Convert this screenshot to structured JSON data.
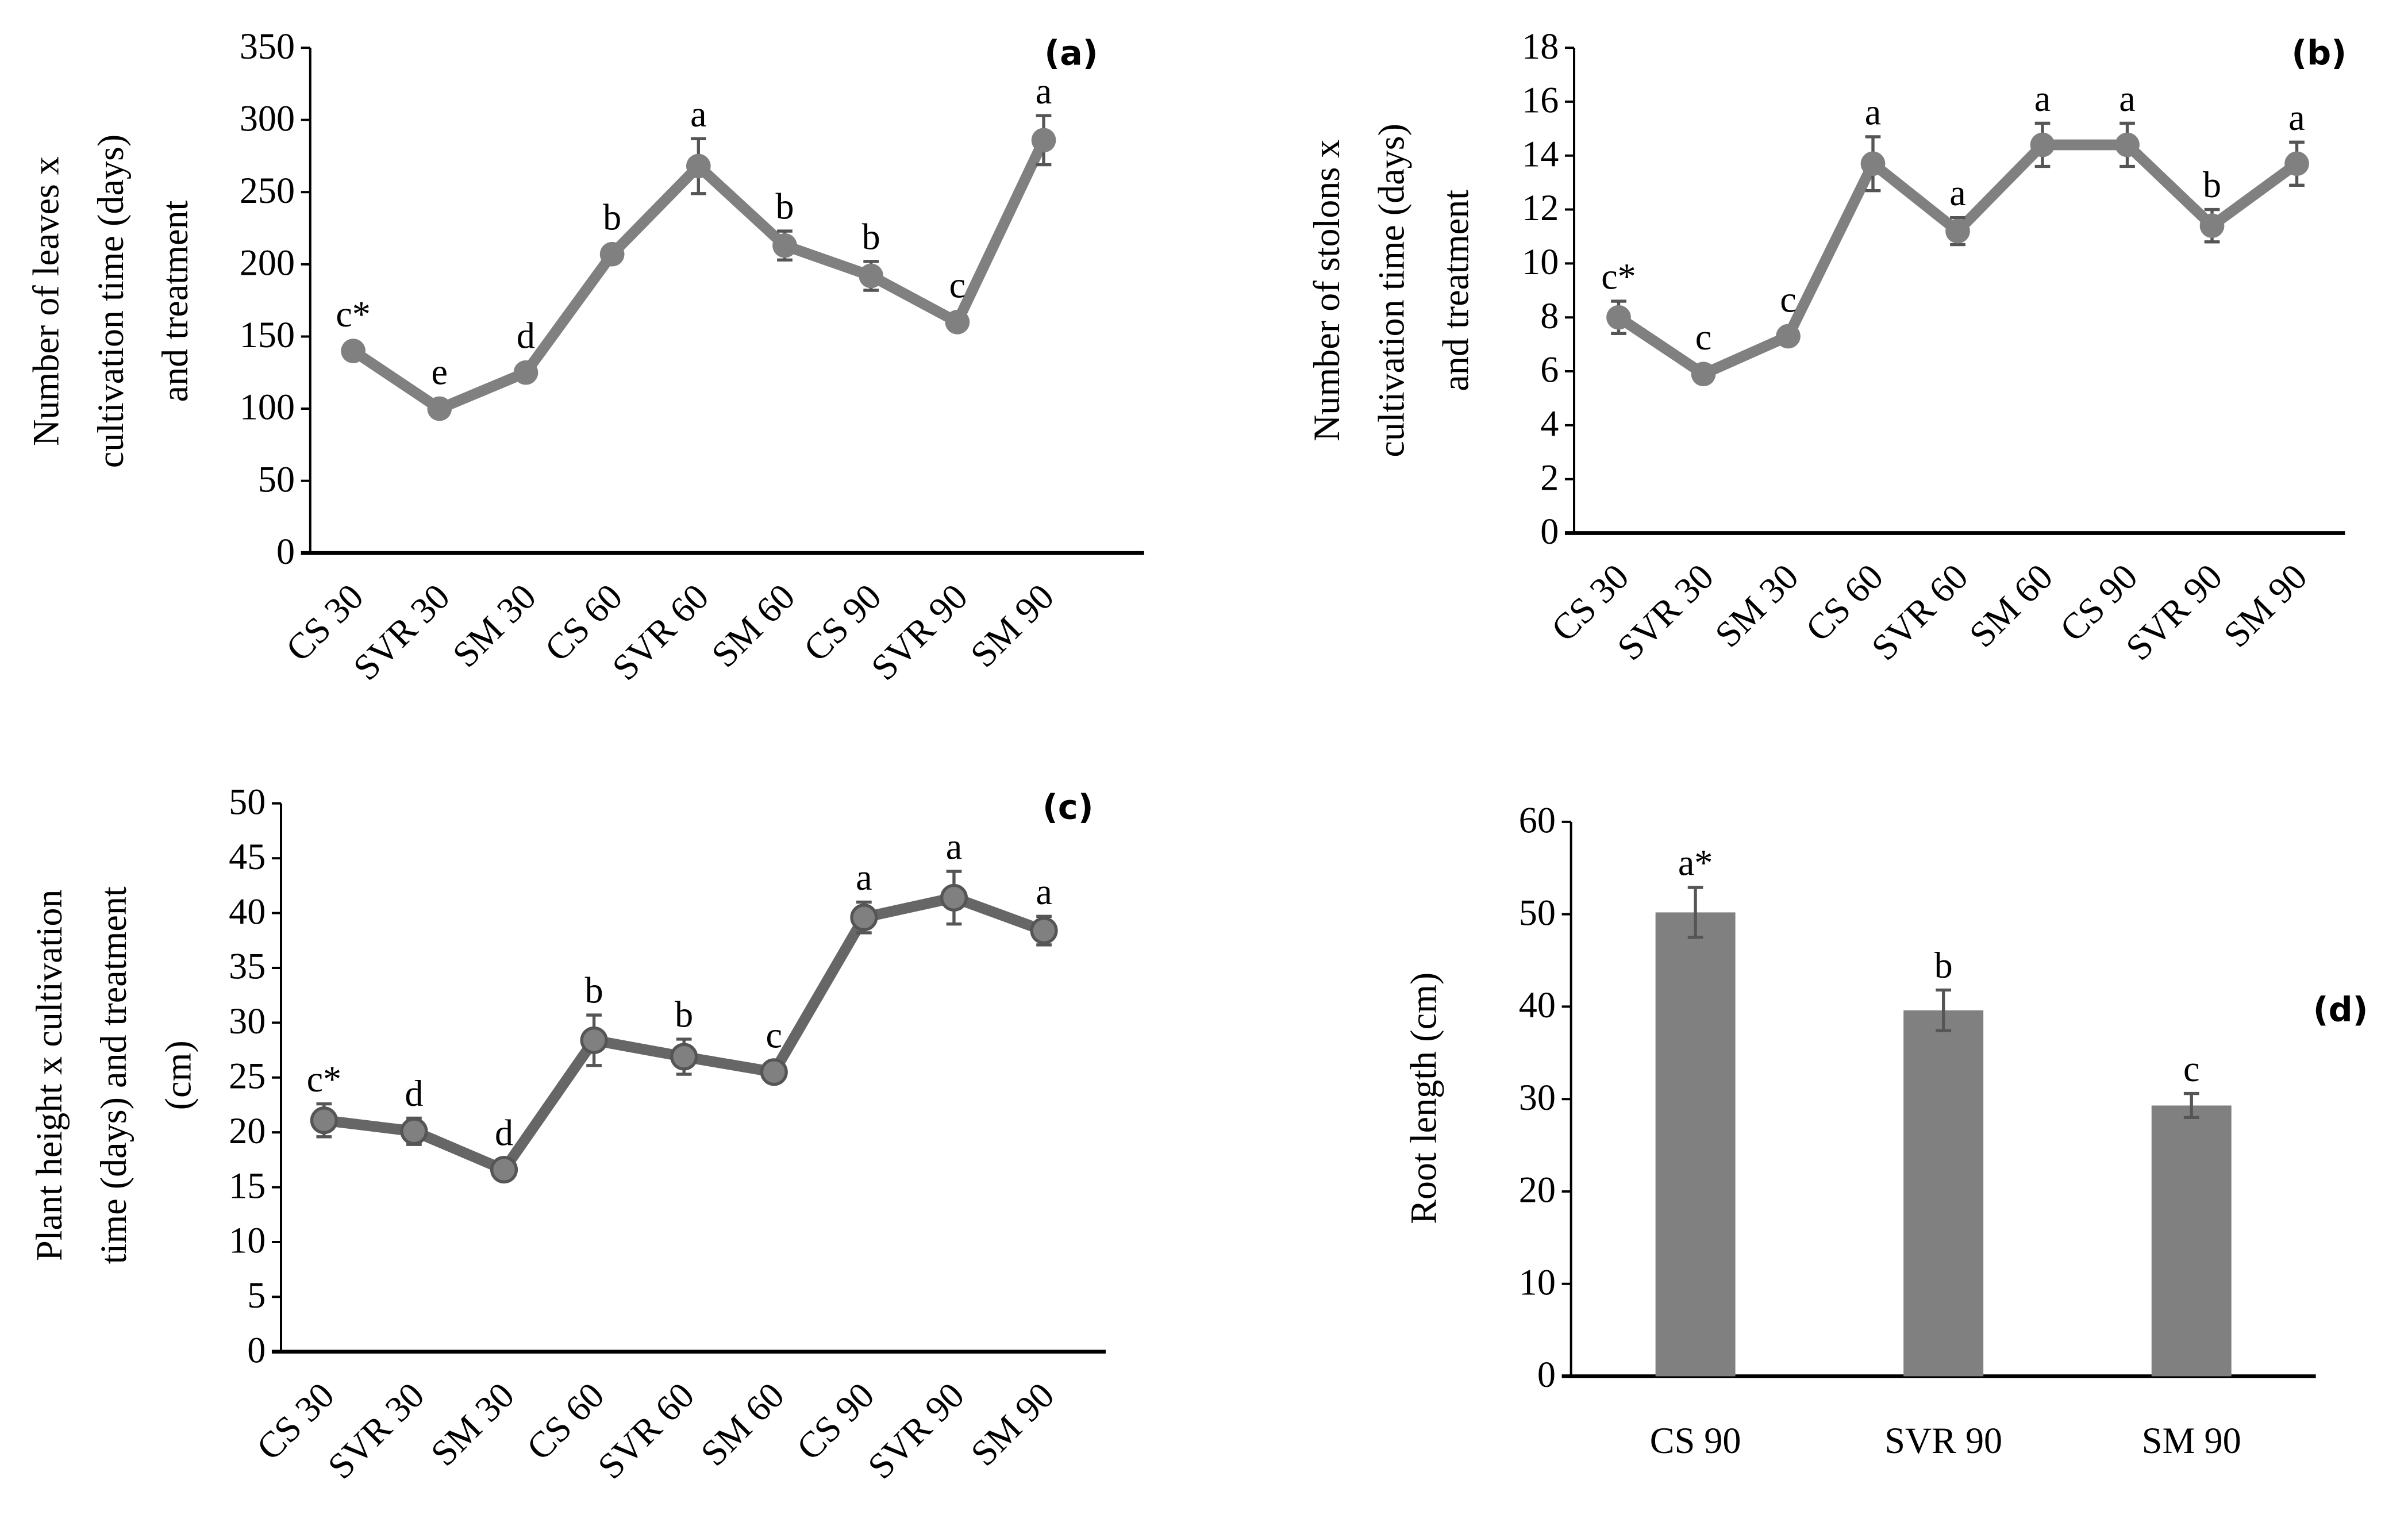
{
  "chart_data": [
    {
      "panel": "(a)",
      "type": "line",
      "ylabel": [
        "Number of leaves x",
        "cultivation time (days)",
        "and treatment"
      ],
      "categories": [
        "CS 30",
        "SVR 30",
        "SM 30",
        "CS 60",
        "SVR 60",
        "SM 60",
        "CS 90",
        "SVR 90",
        "SM 90"
      ],
      "values": [
        140,
        100,
        125,
        207,
        268,
        213,
        192,
        160,
        286
      ],
      "errors": [
        4,
        3,
        4,
        5,
        19,
        10,
        10,
        4,
        17
      ],
      "letters": [
        "c*",
        "e",
        "d",
        "b",
        "a",
        "b",
        "b",
        "c",
        "a"
      ],
      "ylim": [
        0,
        350
      ],
      "yticks": [
        0,
        50,
        100,
        150,
        200,
        250,
        300,
        350
      ],
      "color": "#808080"
    },
    {
      "panel": "(b)",
      "type": "line",
      "ylabel": [
        "Number of stolons x",
        "cultivation time (days)",
        "and treatment"
      ],
      "categories": [
        "CS 30",
        "SVR 30",
        "SM 30",
        "CS 60",
        "SVR 60",
        "SM 60",
        "CS 90",
        "SVR 90",
        "SM 90"
      ],
      "values": [
        8.0,
        5.9,
        7.3,
        13.7,
        11.2,
        14.4,
        14.4,
        11.4,
        13.7
      ],
      "errors": [
        0.6,
        0.3,
        0.2,
        1.0,
        0.5,
        0.8,
        0.8,
        0.6,
        0.8
      ],
      "letters": [
        "c*",
        "c",
        "c",
        "a",
        "a",
        "a",
        "a",
        "b",
        "a"
      ],
      "ylim": [
        0,
        18
      ],
      "yticks": [
        0,
        2,
        4,
        6,
        8,
        10,
        12,
        14,
        16,
        18
      ],
      "color": "#808080"
    },
    {
      "panel": "(c)",
      "type": "line",
      "ylabel": [
        "Plant height x cultivation",
        "time  (days) and treatment",
        "(cm)"
      ],
      "categories": [
        "CS 30",
        "SVR 30",
        "SM 30",
        "CS 60",
        "SVR 60",
        "SM 60",
        "CS 90",
        "SVR 90",
        "SM 90"
      ],
      "values": [
        21.1,
        20.1,
        16.6,
        28.4,
        26.9,
        25.5,
        39.6,
        41.4,
        38.4
      ],
      "errors": [
        1.5,
        1.2,
        0.3,
        2.3,
        1.6,
        0.3,
        1.4,
        2.4,
        1.3
      ],
      "letters": [
        "c*",
        "d",
        "d",
        "b",
        "b",
        "c",
        "a",
        "a",
        "a"
      ],
      "ylim": [
        0,
        50
      ],
      "yticks": [
        0,
        5,
        10,
        15,
        20,
        25,
        30,
        35,
        40,
        45,
        50
      ],
      "color": "#666666"
    },
    {
      "panel": "(d)",
      "type": "bar",
      "ylabel": [
        "Root length (cm)"
      ],
      "categories": [
        "CS 90",
        "SVR 90",
        "SM 90"
      ],
      "values": [
        50.2,
        39.6,
        29.3
      ],
      "errors": [
        2.7,
        2.2,
        1.3
      ],
      "letters": [
        "a*",
        "b",
        "c"
      ],
      "ylim": [
        0,
        60
      ],
      "yticks": [
        0,
        10,
        20,
        30,
        40,
        50,
        60
      ],
      "color": "#808080"
    }
  ]
}
